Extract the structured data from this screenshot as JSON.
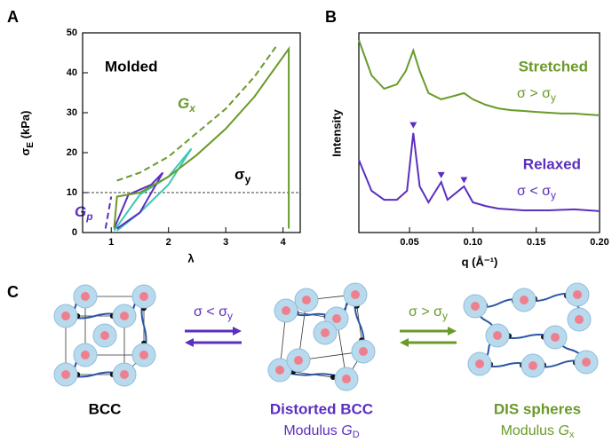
{
  "chart_data": [
    {
      "type": "line",
      "label": "A",
      "y_label": {
        "text": "σ",
        "sub": "E",
        "rest": " (kPa)"
      },
      "x_label": "λ",
      "xlim": [
        0.5,
        4.3
      ],
      "xticks": [
        1,
        2,
        3,
        4
      ],
      "ylim": [
        0,
        50
      ],
      "yticks": [
        0,
        10,
        20,
        30,
        40,
        50
      ],
      "reference_line": {
        "value": 10,
        "color": "#000000"
      },
      "annotations": {
        "molded": "Molded",
        "gx": {
          "text": "G",
          "sub": "x"
        },
        "sigma_y": {
          "text": "σ",
          "sub": "y"
        },
        "gp": {
          "text": "G",
          "sub": "p"
        }
      },
      "series": [
        {
          "color": "#6a9a2a",
          "dash": true,
          "x": [
            1.1,
            1.5,
            2.0,
            2.5,
            3.0,
            3.5,
            3.9
          ],
          "values": [
            13,
            15,
            19,
            25,
            31,
            39,
            47
          ]
        },
        {
          "color": "#5b2fbf",
          "dash": true,
          "x": [
            0.9,
            1.0
          ],
          "values": [
            1,
            9
          ]
        },
        {
          "color": "#3cc9b5",
          "dash": false,
          "x": [
            1.05,
            1.5,
            2.0,
            2.4,
            2.0,
            1.5,
            1.1
          ],
          "values": [
            0.5,
            9.5,
            14,
            21,
            12,
            5,
            0.5
          ]
        },
        {
          "color": "#5b2fbf",
          "dash": false,
          "x": [
            1.05,
            1.3,
            1.7,
            1.9,
            1.5,
            1.1
          ],
          "values": [
            1,
            9.5,
            12,
            15,
            5,
            1
          ]
        },
        {
          "color": "#6a9a2a",
          "dash": false,
          "x": [
            1.05,
            1.1,
            1.5,
            2.0,
            2.5,
            3.0,
            3.5,
            4.1,
            4.1
          ],
          "values": [
            1,
            9,
            10,
            14,
            19.5,
            26,
            34,
            46,
            1
          ]
        }
      ]
    },
    {
      "type": "line",
      "label": "B",
      "y_label": "Intensity",
      "x_label": "q (Å⁻¹)",
      "xlim": [
        0.01,
        0.2
      ],
      "xticks": [
        0.05,
        {
          "value": 0.1,
          "label": "0.10"
        },
        0.15,
        {
          "value": 0.2,
          "label": "0.20"
        }
      ],
      "ylim": [
        0,
        10
      ],
      "annotations": {
        "stretched": "Stretched",
        "gt": {
          "text": "σ > σ",
          "sub": "y"
        },
        "relaxed": "Relaxed",
        "lt": {
          "text": "σ < σ",
          "sub": "y"
        }
      },
      "peak_markers": {
        "color": "#5b2fbf",
        "x": [
          0.053,
          0.075,
          0.093
        ],
        "values": [
          5.35,
          2.85,
          2.6
        ]
      },
      "series": [
        {
          "color": "#6a9a2a",
          "dash": false,
          "x": [
            0.01,
            0.02,
            0.03,
            0.04,
            0.047,
            0.053,
            0.058,
            0.065,
            0.075,
            0.085,
            0.093,
            0.1,
            0.11,
            0.12,
            0.13,
            0.14,
            0.15,
            0.16,
            0.17,
            0.18,
            0.19,
            0.2
          ],
          "values": [
            9.64,
            7.87,
            7.2,
            7.42,
            8.09,
            9.11,
            8.09,
            6.98,
            6.67,
            6.84,
            6.98,
            6.67,
            6.4,
            6.22,
            6.13,
            6.09,
            6.04,
            6.0,
            5.96,
            5.96,
            5.91,
            5.87
          ]
        },
        {
          "color": "#5b2fbf",
          "dash": false,
          "x": [
            0.01,
            0.02,
            0.03,
            0.04,
            0.048,
            0.053,
            0.058,
            0.065,
            0.075,
            0.08,
            0.093,
            0.1,
            0.11,
            0.12,
            0.14,
            0.16,
            0.18,
            0.2
          ],
          "values": [
            3.64,
            2.09,
            1.64,
            1.64,
            2.09,
            4.98,
            2.31,
            1.51,
            2.53,
            1.64,
            2.31,
            1.51,
            1.33,
            1.2,
            1.11,
            1.11,
            1.16,
            1.07
          ]
        }
      ]
    }
  ],
  "diagram": {
    "label": "C",
    "bcc": "BCC",
    "distorted": "Distorted BCC",
    "modulus_d": {
      "text": "Modulus ",
      "g": "G",
      "sub": "D"
    },
    "dis": "DIS spheres",
    "modulus_x": {
      "text": "Modulus ",
      "g": "G",
      "sub": "x"
    },
    "arrow_lt": {
      "text": "σ < σ",
      "sub": "y"
    },
    "arrow_gt": {
      "text": "σ > σ",
      "sub": "y"
    }
  }
}
